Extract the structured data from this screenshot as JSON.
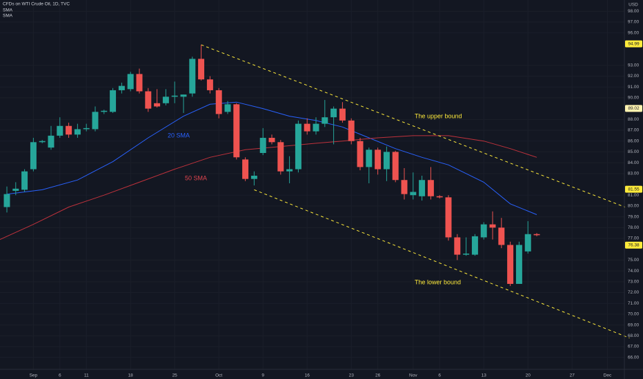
{
  "chart_data": {
    "type": "candlestick",
    "title": "CFDs on WTI Crude Oil, 1D, TVC",
    "indicators": [
      "SMA",
      "SMA"
    ],
    "currency": "USD",
    "up_color": "#26a69a",
    "down_color": "#ef5350",
    "open": [
      79.9,
      81.4,
      81.5,
      83.4,
      85.9,
      85.4,
      86.5,
      87.4,
      86.6,
      87.1,
      87.1,
      88.7,
      88.7,
      90.7,
      90.8,
      92.2,
      90.6,
      89.5,
      89.5,
      90.1,
      90.1,
      90.4,
      93.6,
      91.7,
      90.7,
      88.7,
      89.4,
      84.3,
      82.5,
      84.9,
      86.3,
      85.9,
      83.2,
      83.4,
      87.6,
      86.9,
      87.6,
      88.2,
      89.0,
      87.9,
      86.0,
      83.6,
      85.2,
      83.4,
      85.0,
      82.4,
      81.0,
      80.9,
      82.4,
      80.9,
      80.8,
      77.1,
      75.5,
      75.5,
      77.1,
      78.3,
      78.0,
      76.4,
      72.8,
      75.8,
      77.4
    ],
    "high": [
      81.8,
      82.2,
      83.4,
      86.3,
      86.1,
      87.4,
      88.2,
      87.7,
      87.6,
      87.6,
      89.2,
      88.9,
      90.9,
      91.4,
      92.4,
      92.7,
      90.9,
      90.8,
      90.8,
      91.5,
      90.3,
      93.8,
      94.9,
      92.0,
      90.9,
      89.7,
      89.5,
      84.5,
      83.2,
      87.2,
      86.6,
      86.1,
      84.6,
      87.9,
      88.1,
      88.2,
      89.8,
      89.2,
      89.6,
      88.1,
      86.3,
      85.4,
      85.4,
      85.5,
      85.1,
      83.5,
      83.1,
      82.8,
      83.6,
      81.0,
      81.0,
      77.4,
      77.1,
      77.4,
      78.5,
      79.5,
      78.9,
      76.7,
      76.7,
      78.6,
      77.5
    ],
    "low": [
      79.4,
      81.0,
      81.3,
      83.2,
      85.8,
      85.2,
      86.3,
      86.3,
      86.3,
      86.9,
      86.9,
      88.5,
      88.6,
      90.4,
      90.6,
      90.4,
      88.7,
      89.1,
      89.3,
      89.5,
      88.6,
      90.1,
      91.6,
      90.4,
      88.1,
      88.5,
      84.3,
      82.3,
      81.9,
      84.7,
      85.7,
      82.9,
      82.1,
      83.1,
      86.6,
      86.6,
      87.3,
      85.7,
      87.7,
      85.7,
      83.3,
      82.1,
      82.9,
      82.3,
      82.2,
      80.6,
      80.6,
      80.5,
      80.6,
      80.7,
      76.8,
      75.0,
      75.4,
      75.4,
      76.9,
      76.9,
      76.1,
      72.6,
      72.8,
      75.6,
      77.2
    ],
    "close": [
      81.1,
      81.6,
      83.2,
      85.9,
      86.0,
      86.5,
      87.4,
      86.6,
      87.1,
      87.2,
      88.7,
      88.8,
      90.7,
      91.1,
      92.2,
      90.6,
      89.0,
      89.2,
      90.1,
      90.2,
      90.3,
      93.6,
      91.7,
      90.7,
      88.5,
      89.4,
      84.5,
      82.5,
      82.8,
      86.3,
      85.9,
      83.2,
      83.4,
      87.6,
      86.9,
      87.6,
      88.2,
      89.0,
      87.9,
      86.0,
      83.6,
      85.2,
      83.4,
      85.0,
      82.4,
      81.1,
      81.3,
      82.4,
      80.9,
      80.8,
      77.1,
      75.5,
      75.6,
      77.2,
      78.3,
      78.0,
      76.4,
      72.8,
      76.4,
      77.4,
      77.3
    ],
    "series": [
      {
        "name": "20 SMA",
        "color": "#2962ff",
        "x": [
          0,
          4,
          8,
          12,
          16,
          20,
          23,
          26,
          29,
          32,
          35,
          38,
          41,
          44,
          47,
          50,
          54,
          57,
          60
        ],
        "values": [
          81.1,
          81.5,
          82.4,
          84.1,
          86.3,
          88.3,
          89.4,
          89.6,
          89.0,
          88.3,
          87.9,
          87.3,
          86.3,
          85.3,
          84.5,
          83.8,
          82.2,
          80.2,
          79.2
        ]
      },
      {
        "name": "50 SMA",
        "color": "#c1323c",
        "x": [
          -0.78,
          3,
          7,
          11,
          15,
          19,
          23,
          27,
          31,
          35,
          38,
          42,
          46,
          50,
          54,
          57,
          60
        ],
        "values": [
          76.9,
          78.3,
          79.9,
          81.0,
          82.2,
          83.4,
          84.5,
          85.2,
          85.5,
          85.8,
          86.0,
          86.3,
          86.5,
          86.5,
          86.0,
          85.3,
          84.5
        ]
      }
    ],
    "trendlines": [
      {
        "name": "The upper bound",
        "color": "#ffeb3b",
        "x": [
          22,
          70
        ],
        "values": [
          94.9,
          79.9
        ]
      },
      {
        "name": "The lower bound",
        "color": "#ffeb3b",
        "x": [
          28,
          70.5
        ],
        "values": [
          81.5,
          67.8
        ]
      }
    ],
    "price_labels": [
      {
        "value": 94.99,
        "color": "#ffeb3b"
      },
      {
        "value": 89.02,
        "color": "#fff3b0"
      },
      {
        "value": 81.55,
        "color": "#ffeb3b"
      },
      {
        "value": 76.38,
        "color": "#ffeb3b"
      }
    ],
    "xlim": [
      -0.78,
      69.92
    ],
    "ylim": [
      64.9,
      99.04
    ],
    "grid": true,
    "xticks": [
      {
        "value": 3,
        "label": "Sep"
      },
      {
        "value": 6,
        "label": "6"
      },
      {
        "value": 9,
        "label": "11"
      },
      {
        "value": 14,
        "label": "18"
      },
      {
        "value": 19,
        "label": "25"
      },
      {
        "value": 24,
        "label": "Oct"
      },
      {
        "value": 29,
        "label": "9"
      },
      {
        "value": 34,
        "label": "16"
      },
      {
        "value": 39,
        "label": "23"
      },
      {
        "value": 42,
        "label": "26"
      },
      {
        "value": 46,
        "label": "Nov"
      },
      {
        "value": 49,
        "label": "6"
      },
      {
        "value": 54,
        "label": "13"
      },
      {
        "value": 59,
        "label": "20"
      },
      {
        "value": 64,
        "label": "27"
      },
      {
        "value": 68,
        "label": "Dec"
      }
    ],
    "yticks": [
      {
        "value": 66,
        "label": "66.00"
      },
      {
        "value": 67,
        "label": "67.00"
      },
      {
        "value": 68,
        "label": "68.00"
      },
      {
        "value": 69,
        "label": "69.00"
      },
      {
        "value": 70,
        "label": "70.00"
      },
      {
        "value": 71,
        "label": "71.00"
      },
      {
        "value": 72,
        "label": "72.00"
      },
      {
        "value": 73,
        "label": "73.00"
      },
      {
        "value": 74,
        "label": "74.00"
      },
      {
        "value": 75,
        "label": "75.00"
      },
      {
        "value": 77,
        "label": "77.00"
      },
      {
        "value": 78,
        "label": "78.00"
      },
      {
        "value": 79,
        "label": "79.00"
      },
      {
        "value": 80,
        "label": "80.00"
      },
      {
        "value": 81,
        "label": "81.00"
      },
      {
        "value": 83,
        "label": "83.00"
      },
      {
        "value": 84,
        "label": "84.00"
      },
      {
        "value": 85,
        "label": "85.00"
      },
      {
        "value": 86,
        "label": "86.00"
      },
      {
        "value": 87,
        "label": "87.00"
      },
      {
        "value": 88,
        "label": "88.00"
      },
      {
        "value": 90,
        "label": "90.00"
      },
      {
        "value": 91,
        "label": "91.00"
      },
      {
        "value": 92,
        "label": "92.00"
      },
      {
        "value": 93,
        "label": "93.00"
      },
      {
        "value": 96,
        "label": "96.00"
      },
      {
        "value": 97,
        "label": "97.00"
      },
      {
        "value": 98,
        "label": "98.00"
      }
    ]
  }
}
